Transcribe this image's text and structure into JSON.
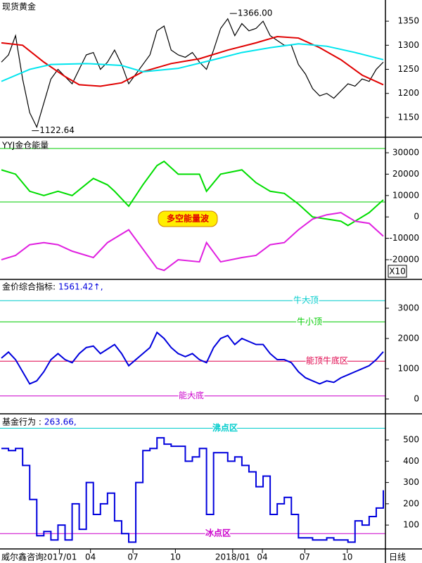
{
  "chart_data": [
    {
      "type": "line",
      "title": "现货黄金",
      "xlim": [
        0,
        54
      ],
      "ylim": [
        1109,
        1394
      ],
      "yticks": [
        1150,
        1200,
        1250,
        1300,
        1350
      ],
      "series": [
        {
          "name": "price",
          "color": "#000000",
          "values": [
            1265,
            1280,
            1320,
            1230,
            1160,
            1130,
            1180,
            1230,
            1250,
            1235,
            1220,
            1250,
            1280,
            1285,
            1250,
            1265,
            1290,
            1260,
            1220,
            1240,
            1260,
            1280,
            1330,
            1340,
            1290,
            1280,
            1275,
            1285,
            1265,
            1250,
            1290,
            1335,
            1355,
            1320,
            1345,
            1330,
            1335,
            1350,
            1320,
            1310,
            1300,
            1300,
            1260,
            1240,
            1210,
            1195,
            1200,
            1190,
            1205,
            1220,
            1215,
            1230,
            1225,
            1250,
            1265
          ]
        },
        {
          "name": "ma-red",
          "color": "#e00000",
          "x": [
            0,
            3,
            6,
            9,
            11,
            14,
            17,
            20,
            24,
            28,
            32,
            36,
            39,
            42,
            45,
            48,
            51,
            54
          ],
          "values": [
            1305,
            1300,
            1265,
            1235,
            1218,
            1215,
            1222,
            1245,
            1262,
            1272,
            1290,
            1305,
            1318,
            1315,
            1295,
            1270,
            1238,
            1218
          ]
        },
        {
          "name": "ma-cyan",
          "color": "#00e5ee",
          "x": [
            0,
            4,
            7,
            12,
            17,
            20,
            25,
            30,
            34,
            38,
            42,
            46,
            50,
            54
          ],
          "values": [
            1225,
            1250,
            1260,
            1262,
            1258,
            1245,
            1252,
            1270,
            1285,
            1295,
            1303,
            1298,
            1285,
            1270
          ]
        }
      ],
      "annotations": [
        {
          "label": "1366.00",
          "x": 32.7,
          "y": 1366
        },
        {
          "label": "1122.64",
          "x": 4.7,
          "y": 1122.64
        }
      ]
    },
    {
      "type": "line",
      "title": "YYJ金仓能量",
      "xlim": [
        0,
        54
      ],
      "ylim": [
        -29200,
        36600
      ],
      "yticks": [
        -20000,
        -10000,
        0,
        10000,
        20000,
        30000
      ],
      "axis_note": "X10",
      "badge": "多空能量波",
      "hlines": [
        {
          "value": 32000,
          "color": "#00cc00"
        },
        {
          "value": 7000,
          "color": "#00cc00"
        }
      ],
      "series": [
        {
          "name": "green",
          "color": "#00dd00",
          "x": [
            0,
            2,
            4,
            6,
            8,
            10,
            13,
            15,
            16,
            18,
            20,
            22,
            23,
            25,
            28,
            29,
            31,
            34,
            36,
            38,
            40,
            42,
            44,
            46,
            48,
            49,
            50,
            52,
            54
          ],
          "values": [
            22000,
            20000,
            12000,
            10000,
            12000,
            10000,
            18000,
            15000,
            12000,
            5000,
            15000,
            24000,
            26000,
            20000,
            20000,
            12000,
            20000,
            22000,
            16000,
            12000,
            11000,
            6000,
            0,
            -1000,
            -2000,
            -4000,
            -2000,
            2000,
            8000
          ]
        },
        {
          "name": "magenta",
          "color": "#e020e0",
          "x": [
            0,
            2,
            4,
            6,
            8,
            10,
            13,
            15,
            16,
            18,
            20,
            22,
            23,
            25,
            28,
            29,
            31,
            34,
            36,
            38,
            40,
            42,
            44,
            46,
            48,
            49,
            50,
            52,
            54
          ],
          "values": [
            -20000,
            -18000,
            -13000,
            -12000,
            -13000,
            -16000,
            -19000,
            -12000,
            -10000,
            -6000,
            -15000,
            -24000,
            -25000,
            -20000,
            -21000,
            -12000,
            -21000,
            -19000,
            -18000,
            -13000,
            -12000,
            -6000,
            -1000,
            1000,
            2000,
            0,
            -2000,
            -3000,
            -9000
          ]
        }
      ]
    },
    {
      "type": "line",
      "title": "金价综合指标:",
      "current_label": "1561.42↑,",
      "xlim": [
        0,
        54
      ],
      "ylim": [
        -490,
        3930
      ],
      "yticks": [
        0,
        1000,
        2000,
        3000
      ],
      "hlines": [
        {
          "value": 3250,
          "label": "牛大顶",
          "color": "#00cccc"
        },
        {
          "value": 2550,
          "label": "牛小顶",
          "color": "#00cc00"
        },
        {
          "value": 1250,
          "label": "能顶牛底区",
          "color": "#e0004a"
        },
        {
          "value": 100,
          "label": "能大底",
          "color": "#cc00cc"
        }
      ],
      "series": [
        {
          "name": "index",
          "color": "#0000dd",
          "values": [
            1350,
            1550,
            1300,
            900,
            500,
            600,
            900,
            1300,
            1500,
            1300,
            1200,
            1500,
            1700,
            1750,
            1500,
            1650,
            1800,
            1500,
            1100,
            1300,
            1500,
            1700,
            2200,
            2000,
            1700,
            1500,
            1400,
            1500,
            1300,
            1200,
            1700,
            2000,
            2100,
            1800,
            2000,
            1900,
            1800,
            1800,
            1500,
            1300,
            1300,
            1200,
            900,
            700,
            600,
            500,
            600,
            550,
            700,
            800,
            900,
            1000,
            1100,
            1300,
            1561.42
          ]
        }
      ]
    },
    {
      "type": "line",
      "step": true,
      "title": "基金行为 :",
      "current_label": "263.66,",
      "xlim": [
        0,
        54
      ],
      "ylim": [
        -12,
        616
      ],
      "yticks": [
        100,
        200,
        300,
        400,
        500
      ],
      "hlines": [
        {
          "value": 555,
          "label": "沸点区",
          "color": "#00cccc"
        },
        {
          "value": 60,
          "label": "冰点区",
          "color": "#cc00cc"
        }
      ],
      "series": [
        {
          "name": "fund",
          "color": "#0000dd",
          "values": [
            460,
            450,
            460,
            380,
            220,
            50,
            70,
            30,
            100,
            30,
            200,
            80,
            300,
            150,
            200,
            250,
            120,
            60,
            20,
            300,
            450,
            460,
            510,
            480,
            470,
            470,
            400,
            420,
            460,
            150,
            440,
            440,
            400,
            420,
            380,
            350,
            280,
            330,
            150,
            200,
            230,
            150,
            40,
            40,
            30,
            30,
            40,
            30,
            30,
            20,
            120,
            100,
            140,
            180,
            263.66
          ]
        }
      ],
      "xticks": [
        {
          "value": 8.2,
          "label": "2017/01"
        },
        {
          "value": 12.6,
          "label": "04"
        },
        {
          "value": 18.6,
          "label": "07"
        },
        {
          "value": 24.6,
          "label": "10"
        },
        {
          "value": 32.7,
          "label": "2018/01"
        },
        {
          "value": 36.9,
          "label": "04"
        },
        {
          "value": 42.9,
          "label": "07"
        },
        {
          "value": 48.9,
          "label": "10"
        }
      ],
      "x_unit_label": "日线",
      "source": "威尔鑫咨询"
    }
  ]
}
